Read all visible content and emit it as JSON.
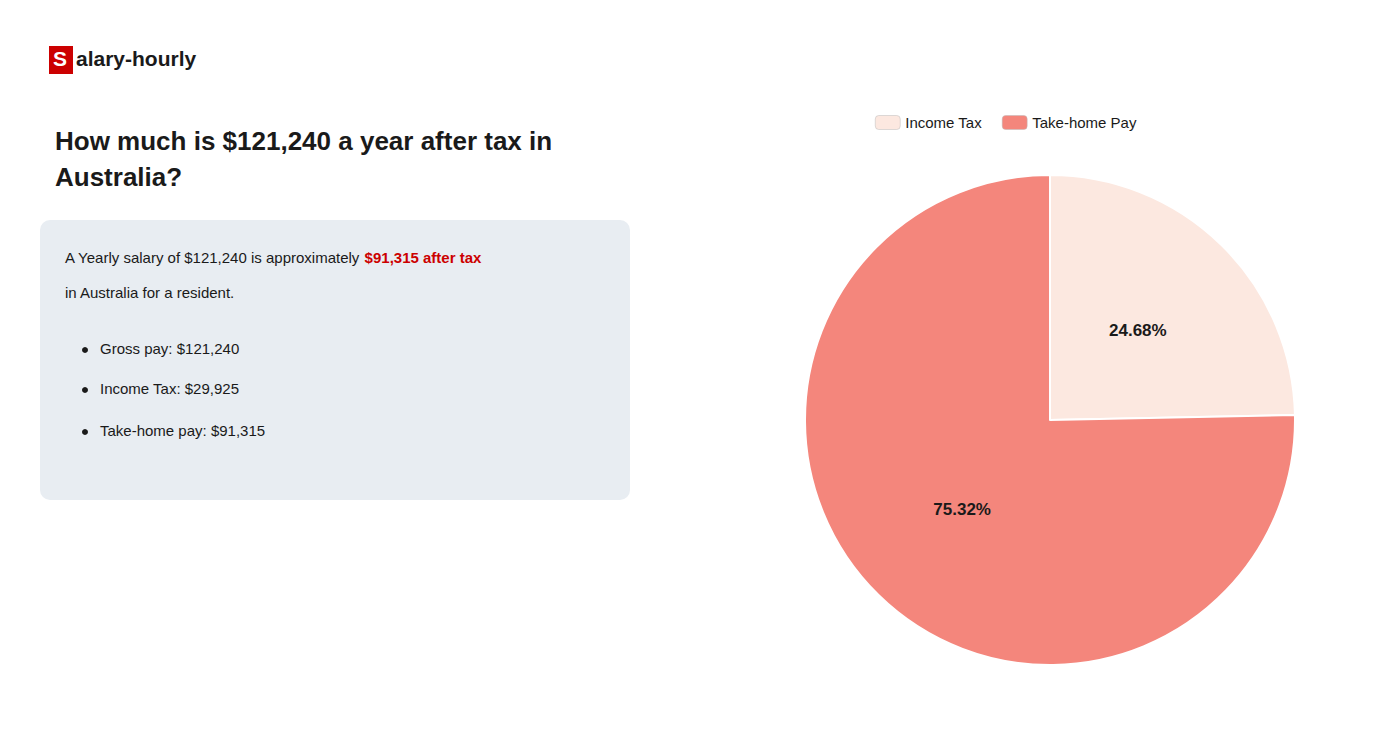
{
  "chart_data": {
    "type": "pie",
    "title": "How much is $121,240 a year after tax in\nAustralia?",
    "categories": [
      "Income Tax",
      "Take-home Pay"
    ],
    "values": [
      24.68,
      75.32
    ],
    "value_labels": [
      "24.68%",
      "75.32%"
    ],
    "colors": [
      "#fce8e0",
      "#f4867c"
    ],
    "data_labels": true,
    "legend": "top",
    "annotations": {
      "logo": [
        {
          "text": "S",
          "color": "#ffffff",
          "background": "#cc0000"
        },
        {
          "text": "alary-hourly"
        }
      ],
      "info_box": {
        "background": "#e8edf2",
        "lines": [
          [
            {
              "text": "A Yearly salary of $121,240 is approximately "
            },
            {
              "text": "$91,315 after tax",
              "color": "#cc0000"
            }
          ],
          [
            {
              "text": "in Australia for a resident."
            }
          ]
        ]
      },
      "bullets": [
        "Gross pay: $121,240",
        "Income Tax: $29,925",
        "Take-home pay: $91,315"
      ]
    }
  }
}
